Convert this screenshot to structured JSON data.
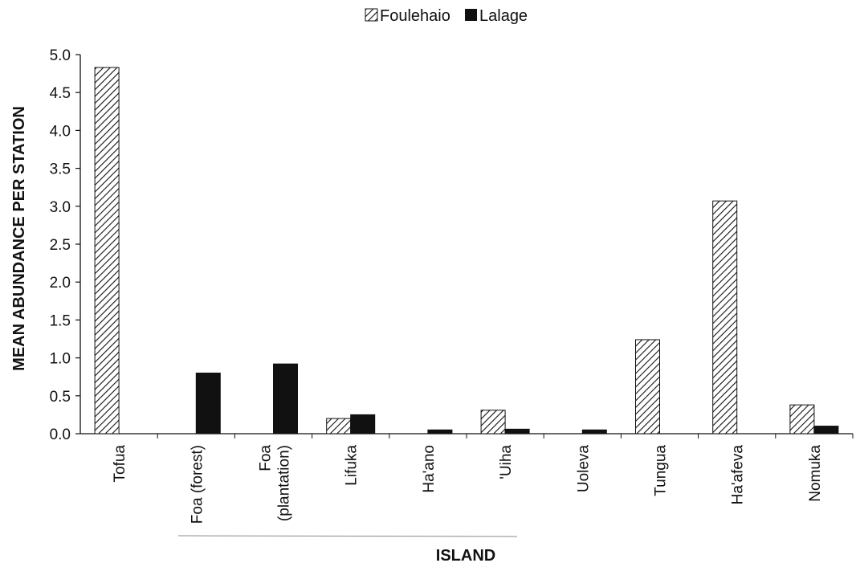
{
  "chart_data": {
    "type": "bar",
    "title": "",
    "xlabel": "ISLAND",
    "ylabel": "MEAN ABUNDANCE PER STATION",
    "ylim": [
      0,
      5.0
    ],
    "y_ticks": [
      "0.0",
      "0.5",
      "1.0",
      "1.5",
      "2.0",
      "2.5",
      "3.0",
      "3.5",
      "4.0",
      "4.5",
      "5.0"
    ],
    "grid": false,
    "legend_position": "top",
    "categories": [
      "Tofua",
      "Foa (forest)",
      "Foa (plantation)",
      "Lifuka",
      "Ha'ano",
      "'Uiha",
      "Uoleva",
      "Tungua",
      "Ha'afeva",
      "Nomuka"
    ],
    "series": [
      {
        "name": "Foulehaio",
        "pattern": "hatched",
        "color": "#111111",
        "values": [
          4.83,
          0,
          0,
          0.2,
          0,
          0.31,
          0,
          1.24,
          3.07,
          0.38
        ]
      },
      {
        "name": "Lalage",
        "pattern": "solid",
        "color": "#111111",
        "values": [
          0,
          0.8,
          0.92,
          0.25,
          0.05,
          0.06,
          0.05,
          0,
          0,
          0.1
        ]
      }
    ]
  }
}
